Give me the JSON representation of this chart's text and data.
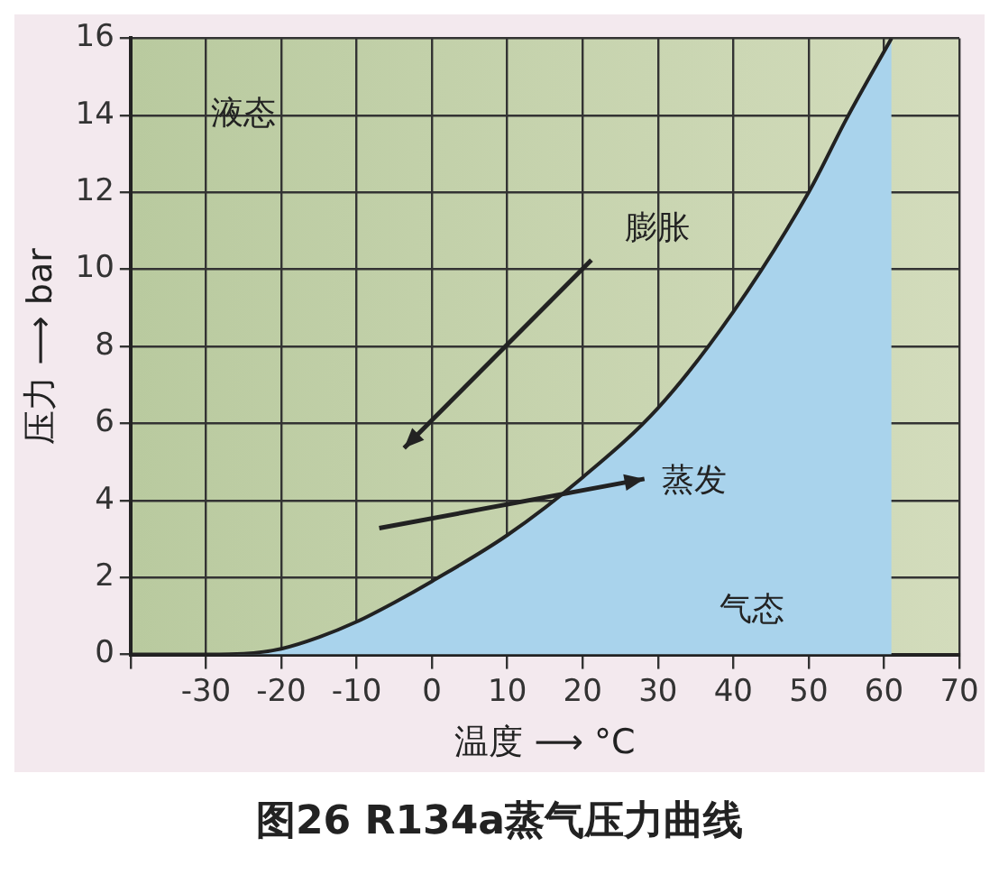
{
  "chart_data": {
    "type": "area",
    "title": "图26 R134a蒸气压力曲线",
    "xlabel": "温度 ⟶ °C",
    "ylabel": "压力 ⟶ bar",
    "x": [
      -40,
      -30,
      -25,
      -20,
      -15,
      -10,
      -5,
      0,
      10,
      20,
      30,
      40,
      50,
      55,
      61
    ],
    "values": [
      0,
      0,
      0.02,
      0.15,
      0.45,
      0.85,
      1.35,
      1.9,
      3.1,
      4.6,
      6.4,
      8.9,
      12,
      13.9,
      16
    ],
    "color": "#a9d3ec",
    "xlim": [
      -40,
      70
    ],
    "xticks": [
      {
        "value": -40,
        "label": null
      },
      -30,
      -20,
      -10,
      0,
      10,
      20,
      30,
      40,
      50,
      60,
      70
    ],
    "ylim": [
      0,
      16
    ],
    "yticks": [
      0,
      2,
      4,
      6,
      8,
      10,
      12,
      14,
      16
    ],
    "grid": true,
    "legend": false,
    "marker": "none",
    "annotations": [
      "液态",
      "膨胀",
      "蒸发",
      "气态"
    ]
  }
}
